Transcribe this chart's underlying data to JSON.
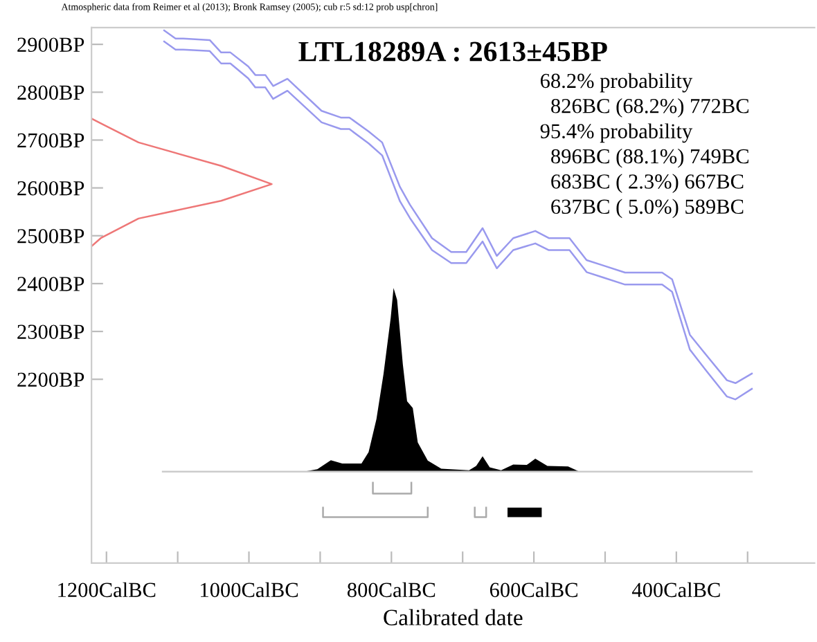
{
  "chart_data": {
    "type": "line",
    "title": "LTL18289A : 2613±45BP",
    "xlabel": "Calibrated date",
    "annotations": [
      "Atmospheric data from Reimer et al (2013); Bronk Ramsey (2005); cub r:5 sd:12 prob usp[chron]",
      "68.2% probability",
      "  826BC (68.2%) 772BC",
      "95.4% probability",
      "  896BC (88.1%) 749BC",
      "  683BC ( 2.3%) 667BC",
      "  637BC ( 5.0%) 589BC"
    ],
    "xlim": [
      1221,
      206
    ],
    "ylim": [
      1816,
      2935
    ],
    "xticks": [
      {
        "value": 1200,
        "label": "1200CalBC"
      },
      {
        "value": 1100,
        "label": null
      },
      {
        "value": 1000,
        "label": "1000CalBC"
      },
      {
        "value": 900,
        "label": null
      },
      {
        "value": 800,
        "label": "800CalBC"
      },
      {
        "value": 700,
        "label": null
      },
      {
        "value": 600,
        "label": "600CalBC"
      },
      {
        "value": 500,
        "label": null
      },
      {
        "value": 400,
        "label": "400CalBC"
      },
      {
        "value": 300,
        "label": null
      }
    ],
    "yticks": [
      {
        "value": 2200,
        "label": "2200BP"
      },
      {
        "value": 2300,
        "label": "2300BP"
      },
      {
        "value": 2400,
        "label": "2400BP"
      },
      {
        "value": 2500,
        "label": "2500BP"
      },
      {
        "value": 2600,
        "label": "2600BP"
      },
      {
        "value": 2700,
        "label": "2700BP"
      },
      {
        "value": 2800,
        "label": "2800BP"
      },
      {
        "value": 2900,
        "label": "2900BP"
      }
    ],
    "grid": false,
    "legend": false,
    "series": [
      {
        "type": "line",
        "color": "#9999ee",
        "x": [
          1119,
          1103,
          1092,
          1055,
          1039,
          1026,
          1001,
          991,
          977,
          966,
          946,
          898,
          871,
          859,
          832,
          813,
          788,
          774,
          743,
          716,
          695,
          672,
          652,
          629,
          598,
          579,
          550,
          526,
          503,
          472,
          420,
          406,
          381,
          356,
          329,
          317,
          294
        ],
        "values": [
          2929,
          2912,
          2912,
          2909,
          2883,
          2883,
          2854,
          2836,
          2836,
          2813,
          2828,
          2761,
          2747,
          2747,
          2718,
          2695,
          2602,
          2565,
          2495,
          2466,
          2466,
          2516,
          2458,
          2495,
          2510,
          2495,
          2495,
          2449,
          2438,
          2423,
          2423,
          2409,
          2293,
          2247,
          2198,
          2192,
          2212
        ]
      },
      {
        "type": "line",
        "color": "#9999ee",
        "x": [
          1119,
          1103,
          1092,
          1055,
          1039,
          1026,
          1001,
          991,
          977,
          966,
          946,
          898,
          871,
          859,
          832,
          813,
          788,
          774,
          743,
          716,
          695,
          672,
          652,
          629,
          598,
          579,
          550,
          526,
          503,
          472,
          420,
          406,
          381,
          356,
          329,
          317,
          294
        ],
        "values": [
          2906,
          2889,
          2889,
          2886,
          2860,
          2860,
          2829,
          2810,
          2810,
          2786,
          2803,
          2737,
          2723,
          2723,
          2693,
          2668,
          2572,
          2537,
          2470,
          2443,
          2443,
          2488,
          2432,
          2470,
          2484,
          2470,
          2470,
          2424,
          2413,
          2398,
          2398,
          2383,
          2262,
          2214,
          2164,
          2158,
          2180
        ]
      },
      {
        "type": "line",
        "color": "#ee7777",
        "x": [
          1221,
          1204,
          1155,
          1039,
          968,
          1039,
          1155,
          1208,
          1221
        ],
        "values": [
          2745,
          2732,
          2695,
          2646,
          2608,
          2573,
          2536,
          2495,
          2478
        ]
      },
      {
        "type": "line",
        "color": "#cccccc",
        "x": [
          1121,
          294
        ],
        "values": [
          2007,
          2007
        ]
      },
      {
        "type": "area",
        "color": "#000000",
        "x": [
          923,
          904,
          885,
          869,
          842,
          832,
          821,
          811,
          801,
          797,
          792,
          784,
          778,
          770,
          763,
          749,
          730,
          691,
          681,
          672,
          662,
          646,
          629,
          610,
          598,
          581,
          552,
          536
        ],
        "values": [
          2007,
          2012,
          2031,
          2024,
          2024,
          2048,
          2117,
          2212,
          2328,
          2391,
          2366,
          2232,
          2154,
          2140,
          2068,
          2030,
          2013,
          2010,
          2019,
          2039,
          2016,
          2010,
          2022,
          2021,
          2034,
          2019,
          2018,
          2007
        ]
      },
      {
        "type": "line",
        "color": "#aaaaaa",
        "x": [
          826,
          826,
          772,
          772
        ],
        "values": [
          1984,
          1961,
          1961,
          1984
        ]
      },
      {
        "type": "line",
        "color": "#aaaaaa",
        "x": [
          896,
          896,
          749,
          749
        ],
        "values": [
          1932,
          1912,
          1912,
          1932
        ]
      },
      {
        "type": "line",
        "color": "#aaaaaa",
        "x": [
          683,
          683,
          667,
          667
        ],
        "values": [
          1932,
          1912,
          1912,
          1932
        ]
      },
      {
        "type": "area",
        "color": "#000000",
        "x": [
          637,
          637,
          589,
          589
        ],
        "values": [
          1912,
          1932,
          1932,
          1912
        ]
      }
    ]
  }
}
